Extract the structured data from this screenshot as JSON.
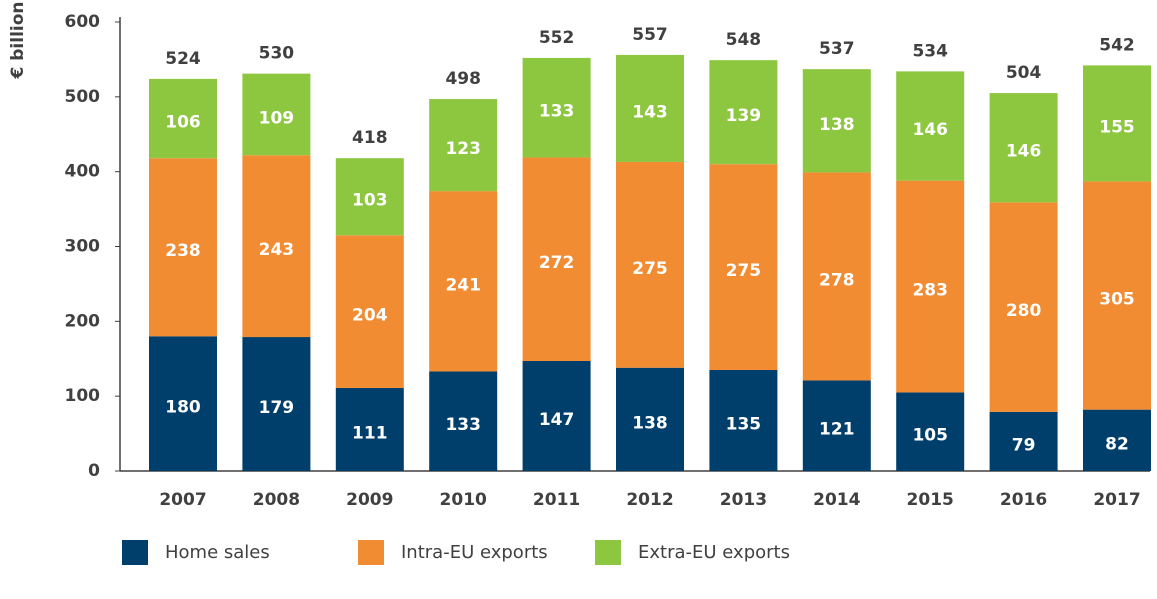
{
  "chart_data": {
    "type": "stacked_bar",
    "y_label": "€ billion",
    "categories": [
      "2007",
      "2008",
      "2009",
      "2010",
      "2011",
      "2012",
      "2013",
      "2014",
      "2015",
      "2016",
      "2017"
    ],
    "series": [
      {
        "name": "Home sales",
        "color": "#003f6b",
        "values": [
          180,
          179,
          111,
          133,
          147,
          138,
          135,
          121,
          105,
          79,
          82
        ]
      },
      {
        "name": "Intra-EU exports",
        "color": "#f28c33",
        "values": [
          238,
          243,
          204,
          241,
          272,
          275,
          275,
          278,
          283,
          280,
          305
        ]
      },
      {
        "name": "Extra-EU exports",
        "color": "#8dc63f",
        "values": [
          106,
          109,
          103,
          123,
          133,
          143,
          139,
          138,
          146,
          146,
          155
        ]
      }
    ],
    "totals": [
      524,
      530,
      418,
      498,
      552,
      557,
      548,
      537,
      534,
      504,
      542
    ],
    "ylim": [
      0,
      600
    ],
    "yticks": [
      0,
      100,
      200,
      300,
      400,
      500,
      600
    ],
    "grid": false
  }
}
